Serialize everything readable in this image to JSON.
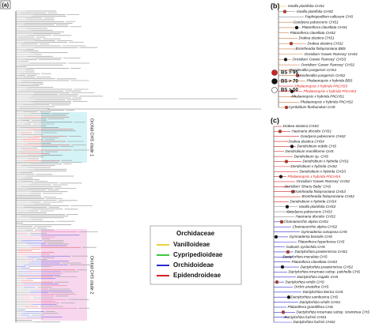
{
  "panels": {
    "a": {
      "label": "(a)",
      "clade1": "Orchid CHS clade 1",
      "clade2": "Orchid CHS clade 2",
      "legend": {
        "title": "Orchidaceae",
        "items": [
          {
            "name": "Vanilloideae",
            "color": "#e8d23a"
          },
          {
            "name": "Cypripedioideae",
            "color": "#3cc83c"
          },
          {
            "name": "Orchidoideae",
            "color": "#2a2ad0"
          },
          {
            "name": "Epidendroideae",
            "color": "#d62020"
          }
        ]
      }
    },
    "b": {
      "label": "(b)",
      "bs_legend": [
        {
          "label": "BS > 95",
          "color": "#d62020"
        },
        {
          "label": "BS > 70",
          "color": "#111111"
        },
        {
          "label": "BS > 50",
          "color": "#ffffff"
        }
      ],
      "leaves": [
        {
          "name": "Vanilla planifolia CHS1"
        },
        {
          "name": "Vanilla planifolia CHS2"
        },
        {
          "name": "Paphiopedilum callosum CHS"
        },
        {
          "name": "Goodyera pubescens CHS1"
        },
        {
          "name": "Platanthera clavellata CHS1"
        },
        {
          "name": "Platanthera clavellata CHS2"
        },
        {
          "name": "Drakea elastica CHS1"
        },
        {
          "name": "Drakea elastica CHS2"
        },
        {
          "name": "Bromheadia finlaysoniana BBS"
        },
        {
          "name": "Oncidium 'Gower Ramsey' CHS1"
        },
        {
          "name": "Oncidium 'Gower Ramsey' CHS3"
        },
        {
          "name": "Oncidium 'Gower Ramsey' CHS2"
        },
        {
          "name": "Masdevallia yungensis CHS1"
        },
        {
          "name": "Masdevallia yungensis CHS2"
        },
        {
          "name": "Phalaenopsis x hybrida BBS"
        },
        {
          "name": "Phalaenopsis x hybrida PhCHS5",
          "color": "#e02020"
        },
        {
          "name": "Phalaenopsis x hybrida PhCHS3",
          "color": "#e02020"
        },
        {
          "name": "Phalaenopsis x hybrida PhCHS1"
        },
        {
          "name": "Phalaenopsis x hybrida PhCHS2"
        },
        {
          "name": "Cymbidium floribundum CHS"
        }
      ]
    },
    "c": {
      "label": "(c)",
      "leaves": [
        {
          "name": "Drakea elastica CHS3"
        },
        {
          "name": "Haemaria discolor CHS1"
        },
        {
          "name": "Goodyera pubescens CHS2"
        },
        {
          "name": "Drakea elastica CHS4"
        },
        {
          "name": "Dendrobium nobile CHS"
        },
        {
          "name": "Dendrobium moniliforme CHS"
        },
        {
          "name": "Dendrobium sp. CHS"
        },
        {
          "name": "Dendrobium x hybrida CHS1"
        },
        {
          "name": "Dendrobium x hybrida CHS2"
        },
        {
          "name": "Dendrobium x hybrida CHS3"
        },
        {
          "name": "Phalaenopsis x hybrida PhCHS4",
          "color": "#e02020"
        },
        {
          "name": "Oncidium 'Gower Ramsey' CHS2"
        },
        {
          "name": "Oncidium 'Sharry Baby' CHS"
        },
        {
          "name": "Bromheadia finlaysoniana CHS3"
        },
        {
          "name": "Bromheadia finlaysoniana CHS2"
        },
        {
          "name": "Dendrobium x hybrida CHS4"
        },
        {
          "name": "Vanilla planifolia CHS3"
        },
        {
          "name": "Goodyera pubescens CHS3"
        },
        {
          "name": "Haemaria discolor CHS2"
        },
        {
          "name": "Chamaeorchis alpina CHS1"
        },
        {
          "name": "Chamaeorchis alpina CHS2"
        },
        {
          "name": "Gymnadenia conopsea CHS"
        },
        {
          "name": "Gymnadenia borealis CHS"
        },
        {
          "name": "Platanthera hyperborea CHS"
        },
        {
          "name": "Galearis cyclochila CHS"
        },
        {
          "name": "Dactylorhiza praetermissa CHS1"
        },
        {
          "name": "Dactylorhiza maculata CHS"
        },
        {
          "name": "Platanthera clavellata CHS3"
        },
        {
          "name": "Dactylorhiza praetermissa CHS2"
        },
        {
          "name": "Dactylorhiza incarnata subsp. pulchella CHS"
        },
        {
          "name": "Dactylorhiza majalis CHS"
        },
        {
          "name": "Dactylorhiza viridis CHS"
        },
        {
          "name": "Orchis anatolica CHS"
        },
        {
          "name": "Dactylorhiza iberica CHS"
        },
        {
          "name": "Dactylorhiza sambucina CHS"
        },
        {
          "name": "Dactylorhiza viridis CHS1"
        },
        {
          "name": "Platanthera grandiflora CHS"
        },
        {
          "name": "Dactylorhiza incarnata subsp. straminea CHS"
        },
        {
          "name": "Dactylorhiza fuchsii CHS1"
        },
        {
          "name": "Dactylorhiza fuchsii CHS2"
        }
      ]
    }
  }
}
